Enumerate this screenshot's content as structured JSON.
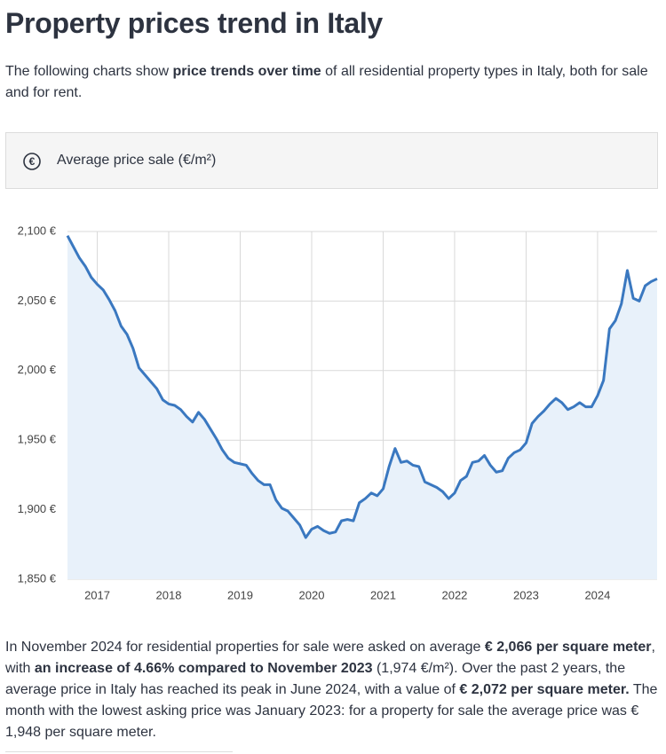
{
  "header": {
    "title": "Property prices trend in Italy"
  },
  "intro": [
    {
      "text": "The following charts show ",
      "bold": false
    },
    {
      "text": "price trends over time",
      "bold": true
    },
    {
      "text": " of all residential property types in Italy, both for sale and for rent.",
      "bold": false
    }
  ],
  "tab": {
    "icon": "€",
    "label": "Average price sale (€/m²)"
  },
  "chart_data": {
    "type": "line",
    "categories": [
      null,
      null,
      null,
      null,
      null,
      "2017",
      null,
      null,
      null,
      null,
      null,
      null,
      null,
      null,
      null,
      null,
      null,
      "2018",
      null,
      null,
      null,
      null,
      null,
      null,
      null,
      null,
      null,
      null,
      null,
      "2019",
      null,
      null,
      null,
      null,
      null,
      null,
      null,
      null,
      null,
      null,
      null,
      "2020",
      null,
      null,
      null,
      null,
      null,
      null,
      null,
      null,
      null,
      null,
      null,
      "2021",
      null,
      null,
      null,
      null,
      null,
      null,
      null,
      null,
      null,
      null,
      null,
      "2022",
      null,
      null,
      null,
      null,
      null,
      null,
      null,
      null,
      null,
      null,
      null,
      "2023",
      null,
      null,
      null,
      null,
      null,
      null,
      null,
      null,
      null,
      null,
      null,
      "2024",
      null,
      null,
      null,
      null,
      null,
      null,
      null,
      null,
      null,
      null
    ],
    "series": [
      {
        "color": "#3a78c0",
        "fill": "#e8f1fa",
        "values": [
          2097,
          2089,
          2081,
          2075,
          2067,
          2062,
          2058,
          2051,
          2043,
          2032,
          2026,
          2016,
          2002,
          1997,
          1992,
          1987,
          1979,
          1976,
          1975,
          1972,
          1967,
          1963,
          1970,
          1965,
          1958,
          1951,
          1943,
          1937,
          1934,
          1933,
          1932,
          1926,
          1921,
          1918,
          1918,
          1907,
          1901,
          1899,
          1894,
          1889,
          1880,
          1886,
          1888,
          1885,
          1883,
          1884,
          1892,
          1893,
          1892,
          1905,
          1908,
          1912,
          1910,
          1915,
          1931,
          1944,
          1934,
          1935,
          1932,
          1931,
          1920,
          1918,
          1916,
          1913,
          1908,
          1912,
          1921,
          1924,
          1934,
          1935,
          1939,
          1932,
          1927,
          1928,
          1937,
          1941,
          1943,
          1948,
          1962,
          1967,
          1971,
          1976,
          1980,
          1977,
          1972,
          1974,
          1977,
          1974,
          1974,
          1982,
          1993,
          2030,
          2036,
          2048,
          2072,
          2052,
          2050,
          2061,
          2064,
          2066
        ]
      }
    ],
    "ylim": [
      1850,
      2100
    ],
    "yticks": [
      {
        "value": 1850,
        "label": "1,850 €"
      },
      {
        "value": 1900,
        "label": "1,900 €"
      },
      {
        "value": 1950,
        "label": "1,950 €"
      },
      {
        "value": 2000,
        "label": "2,000 €"
      },
      {
        "value": 2050,
        "label": "2,050 €"
      },
      {
        "value": 2100,
        "label": "2,100 €"
      }
    ],
    "grid": true
  },
  "summary": [
    {
      "text": "In November 2024 for residential properties for sale were asked on average ",
      "bold": false
    },
    {
      "text": "€ 2,066 per square meter",
      "bold": true
    },
    {
      "text": ", with ",
      "bold": false
    },
    {
      "text": "an increase of 4.66% compared to November 2023",
      "bold": true
    },
    {
      "text": " (1,974 €/m²). Over the past 2 years, the average price in Italy has reached its peak in June 2024, with a value of ",
      "bold": false
    },
    {
      "text": "€ 2,072 per square meter.",
      "bold": true
    },
    {
      "text": " The month with the lowest asking price was January 2023: for a property for sale the average price was € 1,948 per square meter.",
      "bold": false
    }
  ]
}
